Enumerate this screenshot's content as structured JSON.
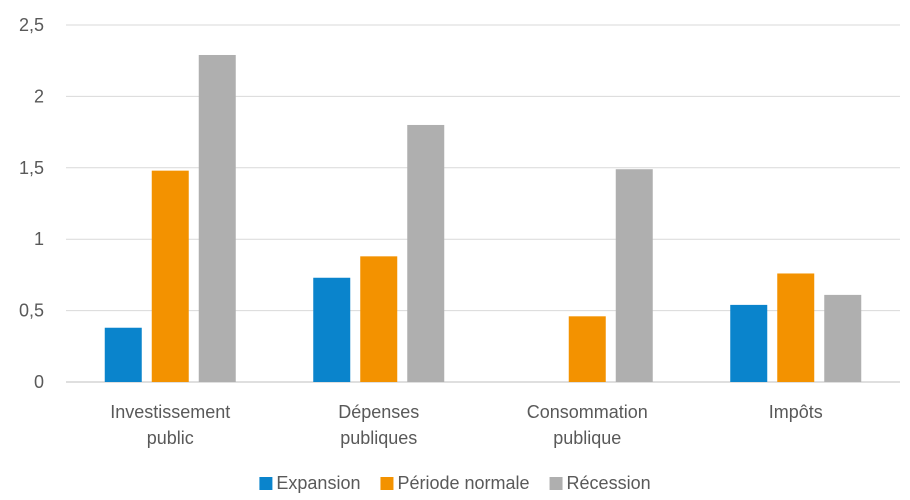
{
  "chart_data": {
    "type": "bar",
    "categories": [
      [
        "Investissement",
        "public"
      ],
      [
        "Dépenses",
        "publiques"
      ],
      [
        "Consommation",
        "publique"
      ],
      [
        "Impôts"
      ]
    ],
    "series": [
      {
        "name": "Expansion",
        "color": "#0a84cc",
        "values": [
          0.38,
          0.73,
          0,
          0.54
        ]
      },
      {
        "name": "Période normale",
        "color": "#f39200",
        "values": [
          1.48,
          0.88,
          0.46,
          0.76
        ]
      },
      {
        "name": "Récession",
        "color": "#afafaf",
        "values": [
          2.29,
          1.8,
          1.49,
          0.61
        ]
      }
    ],
    "yticks": [
      "0",
      "0,5",
      "1",
      "1,5",
      "2",
      "2,5"
    ],
    "ytick_values": [
      0,
      0.5,
      1,
      1.5,
      2,
      2.5
    ],
    "ylim": [
      0,
      2.5
    ],
    "grid": true,
    "legend_position": "bottom",
    "title": "",
    "xlabel": "",
    "ylabel": ""
  }
}
